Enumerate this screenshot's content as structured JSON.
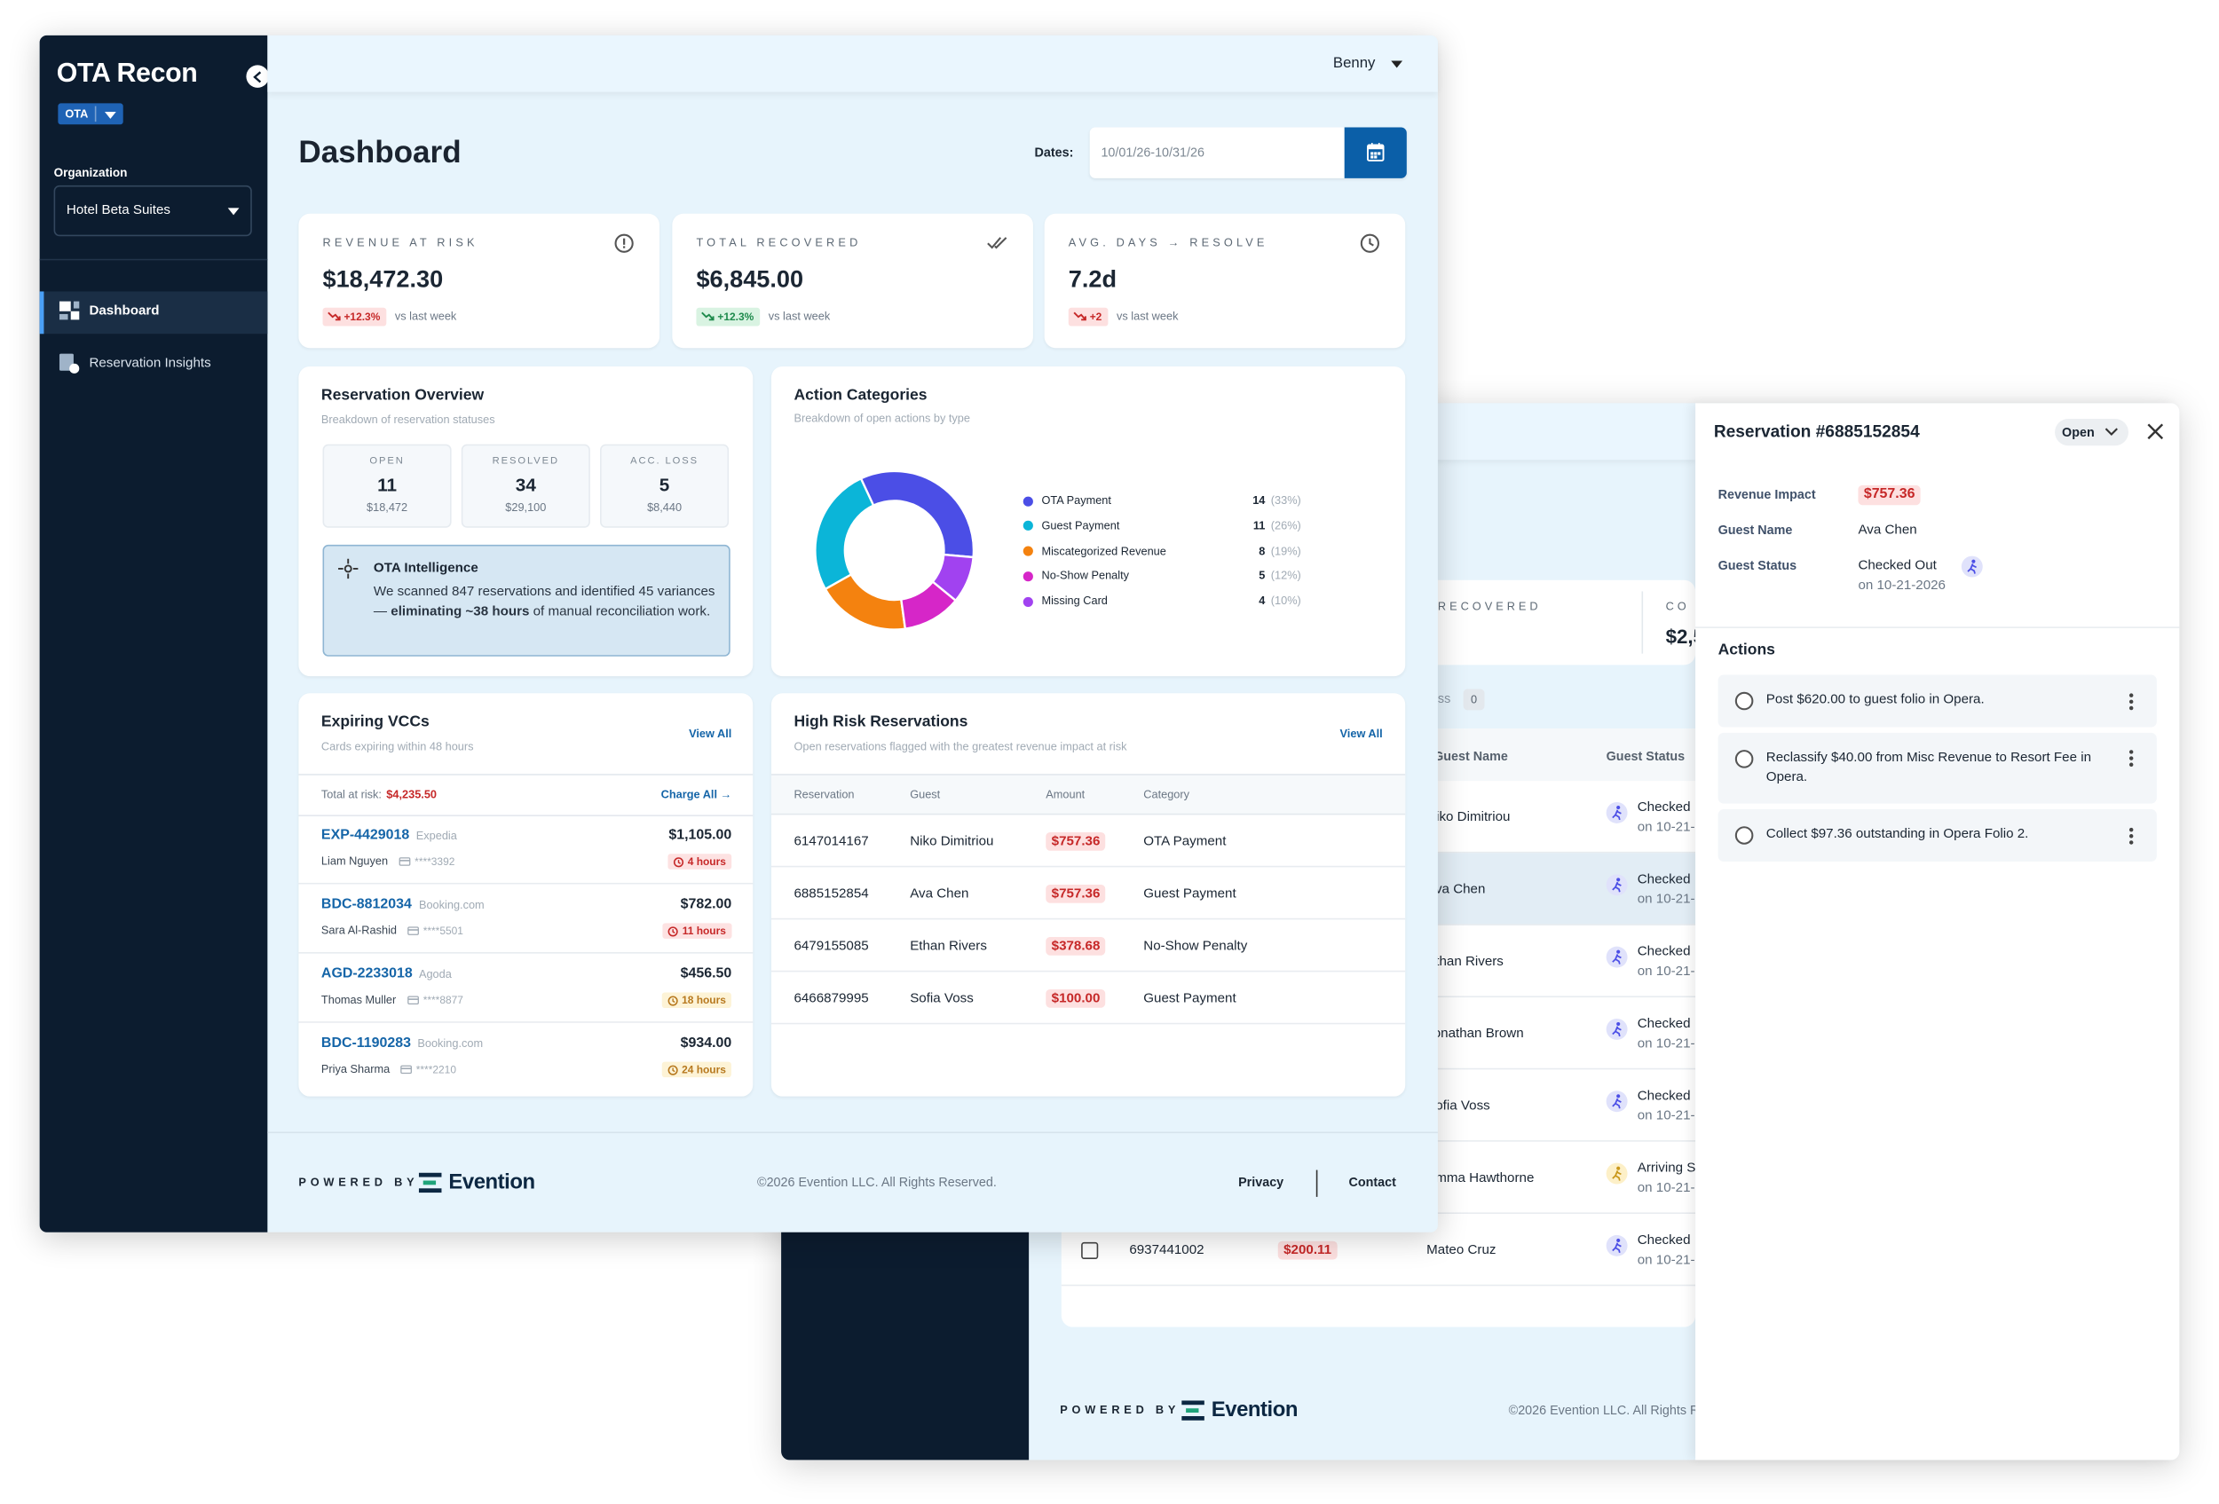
{
  "sidebar": {
    "logo": "OTA Recon",
    "badge": "OTA",
    "org_label": "Organization",
    "org": "Hotel Beta Suites",
    "nav": [
      "Dashboard",
      "Reservation Insights"
    ]
  },
  "header": {
    "user": "Benny"
  },
  "dashboard": {
    "title": "Dashboard",
    "dates_label": "Dates:",
    "dates": "10/01/26-10/31/26",
    "kpis": [
      {
        "label": "REVENUE AT RISK",
        "value": "$18,472.30",
        "delta": "+12.3%",
        "note": "vs last week",
        "delta_color": "#c62828"
      },
      {
        "label": "TOTAL RECOVERED",
        "value": "$6,845.00",
        "delta": "+12.3%",
        "note": "vs last week",
        "delta_color": "#1e8a4c"
      },
      {
        "label": "AVG. DAYS → RESOLVE",
        "value": "7.2d",
        "delta": "+2",
        "note": "vs last week",
        "delta_color": "#c62828"
      }
    ]
  },
  "reservation_overview": {
    "title": "Reservation Overview",
    "subtitle": "Breakdown of reservation statuses",
    "stats": [
      {
        "label": "OPEN",
        "count": "11",
        "amount": "$18,472"
      },
      {
        "label": "RESOLVED",
        "count": "34",
        "amount": "$29,100"
      },
      {
        "label": "ACC. LOSS",
        "count": "5",
        "amount": "$8,440"
      }
    ],
    "intel": {
      "title": "OTA Intelligence",
      "text": "We scanned 847 reservations and identified 45 variances — ",
      "bold": "eliminating ~38 hours",
      "text_end": " of manual reconciliation work."
    }
  },
  "action_categories": {
    "type": "donut",
    "title": "Action Categories",
    "subtitle": "Breakdown of open actions by type",
    "items": [
      {
        "name": "OTA Payment",
        "color": "#4b4ee6",
        "count": 14,
        "share": "(33%)"
      },
      {
        "name": "Guest Payment",
        "color": "#0bb5d8",
        "count": 11,
        "share": "(26%)"
      },
      {
        "name": "Miscategorized Revenue",
        "color": "#f4820f",
        "count": 8,
        "share": "(19%)"
      },
      {
        "name": "No-Show Penalty",
        "color": "#d626c8",
        "count": 5,
        "share": "(12%)"
      },
      {
        "name": "Missing Card",
        "color": "#a142f0",
        "count": 4,
        "share": "(10%)"
      }
    ]
  },
  "expiring_vccs": {
    "title": "Expiring VCCs",
    "subtitle": "Cards expiring within 48 hours",
    "view_all": "View All",
    "total_label": "Total at risk:",
    "total": "$4,235.50",
    "charge_all": "Charge All →",
    "rows": [
      {
        "id": "EXP-4429018",
        "source": "Expedia",
        "guest": "Liam Nguyen",
        "card": "****3392",
        "amount": "$1,105.00",
        "expires": "4 hours",
        "badge_color": "#c62828"
      },
      {
        "id": "BDC-8812034",
        "source": "Booking.com",
        "guest": "Sara Al-Rashid",
        "card": "****5501",
        "amount": "$782.00",
        "expires": "11 hours",
        "badge_color": "#c62828"
      },
      {
        "id": "AGD-2233018",
        "source": "Agoda",
        "guest": "Thomas Muller",
        "card": "****8877",
        "amount": "$456.50",
        "expires": "18 hours",
        "badge_color": "#b7791f"
      },
      {
        "id": "BDC-1190283",
        "source": "Booking.com",
        "guest": "Priya Sharma",
        "card": "****2210",
        "amount": "$934.00",
        "expires": "24 hours",
        "badge_color": "#b7791f"
      }
    ]
  },
  "high_risk": {
    "title": "High Risk Reservations",
    "subtitle": "Open reservations flagged with the greatest revenue impact at risk",
    "view_all": "View All",
    "columns": [
      "Reservation",
      "Guest",
      "Amount",
      "Category"
    ],
    "rows": [
      {
        "reservation": "6147014167",
        "guest": "Niko Dimitriou",
        "amount": "$757.36",
        "category": "OTA Payment"
      },
      {
        "reservation": "6885152854",
        "guest": "Ava Chen",
        "amount": "$757.36",
        "category": "Guest Payment"
      },
      {
        "reservation": "6479155085",
        "guest": "Ethan Rivers",
        "amount": "$378.68",
        "category": "No-Show Penalty"
      },
      {
        "reservation": "6466879995",
        "guest": "Sofia Voss",
        "amount": "$100.00",
        "category": "Guest Payment"
      }
    ]
  },
  "footer": {
    "powered_by": "POWERED BY",
    "brand": "Evention",
    "copyright": "©2026 Evention LLC. All Rights Reserved.",
    "links": [
      "Privacy",
      "Contact"
    ]
  },
  "background_window": {
    "kpi_fragments": [
      "RECOVERED",
      "CO",
      "$2,5"
    ],
    "tab": "ss",
    "tab_count": "0",
    "columns": [
      "Guest Name",
      "Guest Status"
    ],
    "rows": [
      {
        "guest": "Niko Dimitriou",
        "status": "Checked",
        "date": "on 10-21-"
      },
      {
        "guest": "Ava Chen",
        "status": "Checked",
        "date": "on 10-21-"
      },
      {
        "guest": "Ethan Rivers",
        "status": "Checked",
        "date": "on 10-21-"
      },
      {
        "guest": "Jonathan Brown",
        "status": "Checked",
        "date": "on 10-21-"
      },
      {
        "guest": "Sofia Voss",
        "status": "Checked",
        "date": "on 10-21-"
      },
      {
        "guest": "Emma Hawthorne",
        "status": "Arriving S",
        "date": "on 10-21-"
      },
      {
        "reservation": "6937441002",
        "amount": "$200.11",
        "guest": "Mateo Cruz",
        "status": "Checked",
        "date": "on 10-21-"
      }
    ]
  },
  "drawer": {
    "title": "Reservation #6885152854",
    "status": "Open",
    "fields": [
      {
        "label": "Revenue Impact",
        "value": "$757.36"
      },
      {
        "label": "Guest Name",
        "value": "Ava Chen"
      },
      {
        "label": "Guest Status",
        "value": "Checked Out",
        "detail": "on 10-21-2026"
      }
    ],
    "actions_title": "Actions",
    "actions": [
      "Post $620.00 to guest folio in Opera.",
      "Reclassify $40.00 from Misc Revenue to Resort Fee in Opera.",
      "Collect $97.36 outstanding in Opera Folio 2."
    ]
  }
}
